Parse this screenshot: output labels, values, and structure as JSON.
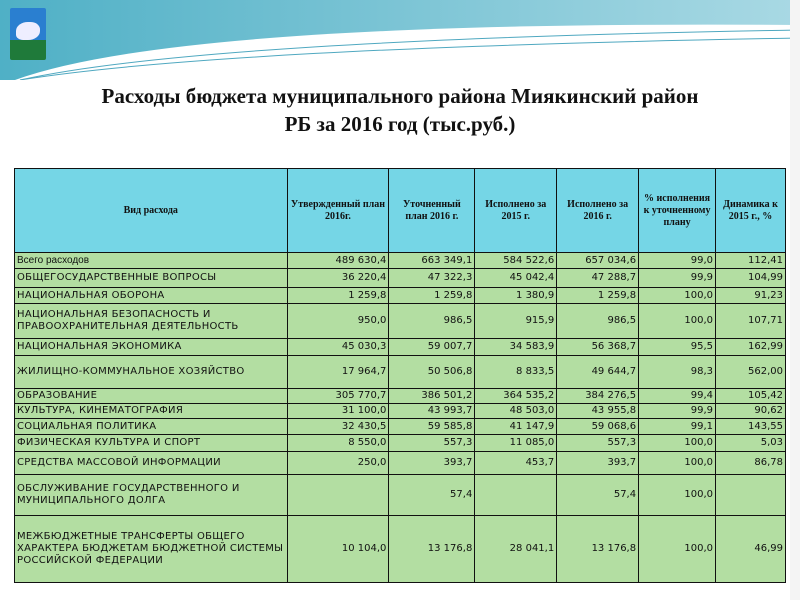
{
  "title": {
    "line1": "Расходы бюджета муниципального района Миякинский район",
    "line2": "РБ за 2016 год (тыс.руб.)"
  },
  "colors": {
    "header_bg": "#75d6e6",
    "row_bg": "#b3dea2",
    "banner": "#5fb8cc"
  },
  "table": {
    "headers": [
      "Вид расхода",
      "Утвержденный план 2016г.",
      "Уточненный план 2016 г.",
      "Исполнено за 2015 г.",
      "Исполнено за 2016 г.",
      "% исполнения к уточненному плану",
      "Динамика к 2015 г., %"
    ],
    "rows": [
      [
        "Всего расходов",
        "489 630,4",
        "663 349,1",
        "584 522,6",
        "657 034,6",
        "99,0",
        "112,41"
      ],
      [
        "ОБЩЕГОСУДАРСТВЕННЫЕ ВОПРОСЫ",
        "36 220,4",
        "47 322,3",
        "45 042,4",
        "47 288,7",
        "99,9",
        "104,99"
      ],
      [
        "НАЦИОНАЛЬНАЯ ОБОРОНА",
        "1 259,8",
        "1 259,8",
        "1 380,9",
        "1 259,8",
        "100,0",
        "91,23"
      ],
      [
        "НАЦИОНАЛЬНАЯ БЕЗОПАСНОСТЬ И ПРАВООХРАНИТЕЛЬНАЯ ДЕЯТЕЛЬНОСТЬ",
        "950,0",
        "986,5",
        "915,9",
        "986,5",
        "100,0",
        "107,71"
      ],
      [
        "НАЦИОНАЛЬНАЯ ЭКОНОМИКА",
        "45 030,3",
        "59 007,7",
        "34 583,9",
        "56 368,7",
        "95,5",
        "162,99"
      ],
      [
        "ЖИЛИЩНО-КОММУНАЛЬНОЕ ХОЗЯЙСТВО",
        "17 964,7",
        "50 506,8",
        "8 833,5",
        "49 644,7",
        "98,3",
        "562,00"
      ],
      [
        "ОБРАЗОВАНИЕ",
        "305 770,7",
        "386 501,2",
        "364 535,2",
        "384 276,5",
        "99,4",
        "105,42"
      ],
      [
        "КУЛЬТУРА, КИНЕМАТОГРАФИЯ",
        "31 100,0",
        "43 993,7",
        "48 503,0",
        "43 955,8",
        "99,9",
        "90,62"
      ],
      [
        "СОЦИАЛЬНАЯ ПОЛИТИКА",
        "32 430,5",
        "59 585,8",
        "41 147,9",
        "59 068,6",
        "99,1",
        "143,55"
      ],
      [
        "ФИЗИЧЕСКАЯ КУЛЬТУРА И СПОРТ",
        "8 550,0",
        "557,3",
        "11 085,0",
        "557,3",
        "100,0",
        "5,03"
      ],
      [
        "СРЕДСТВА МАССОВОЙ ИНФОРМАЦИИ",
        "250,0",
        "393,7",
        "453,7",
        "393,7",
        "100,0",
        "86,78"
      ],
      [
        "ОБСЛУЖИВАНИЕ ГОСУДАРСТВЕННОГО И МУНИЦИПАЛЬНОГО ДОЛГА",
        "",
        "57,4",
        "",
        "57,4",
        "100,0",
        ""
      ],
      [
        "МЕЖБЮДЖЕТНЫЕ ТРАНСФЕРТЫ ОБЩЕГО ХАРАКТЕРА БЮДЖЕТАМ БЮДЖЕТНОЙ СИСТЕМЫ РОССИЙСКОЙ ФЕДЕРАЦИИ",
        "10 104,0",
        "13 176,8",
        "28 041,1",
        "13 176,8",
        "100,0",
        "46,99"
      ]
    ]
  }
}
